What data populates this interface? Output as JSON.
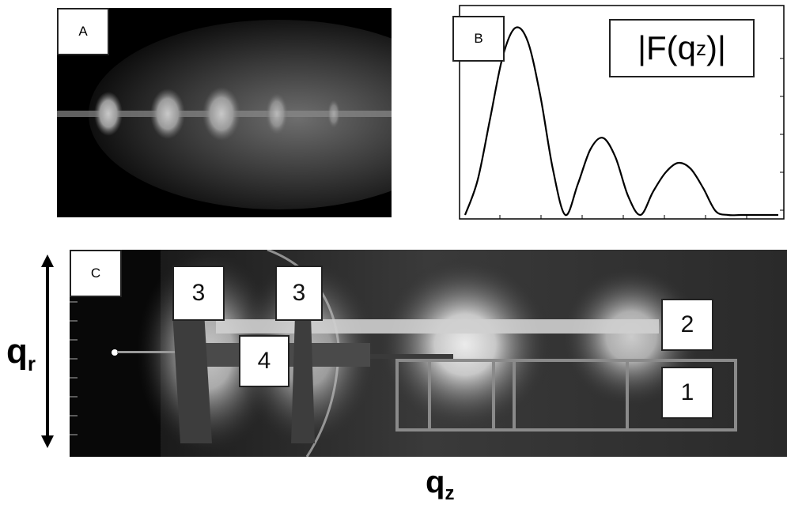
{
  "panels": {
    "a": {
      "label": "A"
    },
    "b": {
      "label": "B",
      "formula_prefix": "|F(q",
      "formula_sub": "z",
      "formula_suffix": ")|"
    },
    "c": {
      "label": "C",
      "box_labels": {
        "three_left": "3",
        "three_right": "3",
        "four": "4",
        "two": "2",
        "one": "1"
      }
    }
  },
  "axes": {
    "qr_main": "q",
    "qr_sub": "r",
    "qz_main": "q",
    "qz_sub": "z"
  },
  "chart_data": {
    "type": "line",
    "title": "|F(qz)|",
    "xlabel": "",
    "ylabel": "",
    "x": [
      0.0,
      0.04,
      0.08,
      0.12,
      0.16,
      0.2,
      0.24,
      0.28,
      0.32,
      0.36,
      0.4,
      0.44,
      0.48,
      0.52,
      0.56,
      0.6,
      0.64,
      0.68,
      0.72,
      0.76,
      0.8,
      0.84,
      0.88,
      0.92,
      0.96,
      1.0
    ],
    "series": [
      {
        "values": [
          0.0,
          0.18,
          0.5,
          0.82,
          0.97,
          0.9,
          0.62,
          0.24,
          0.0,
          0.16,
          0.34,
          0.4,
          0.3,
          0.1,
          0.0,
          0.12,
          0.22,
          0.27,
          0.24,
          0.14,
          0.02,
          0.0,
          0.0,
          0.0,
          0.0,
          0.0
        ]
      }
    ],
    "grid": false,
    "legend": "none"
  }
}
